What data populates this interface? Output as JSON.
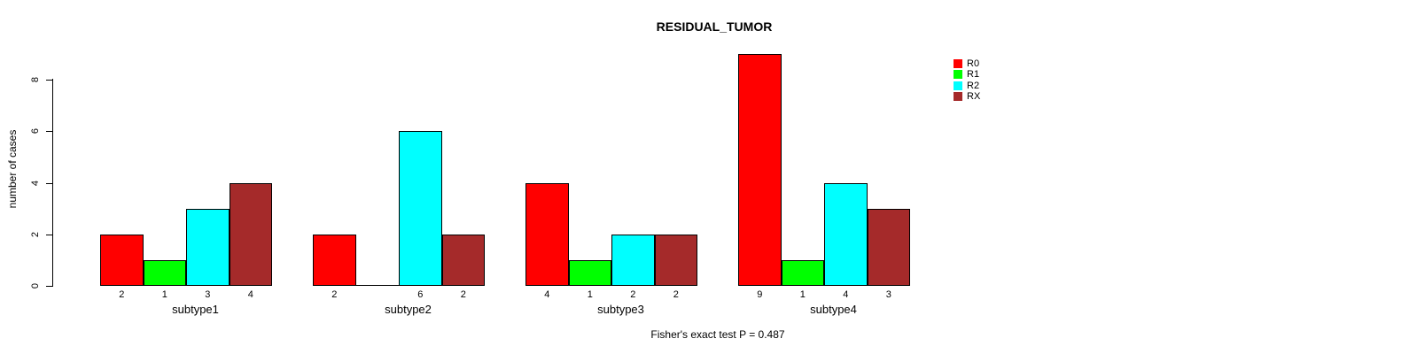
{
  "title": "RESIDUAL_TUMOR",
  "ylabel": "number of cases",
  "caption": "Fisher's exact test P = 0.487",
  "legend": {
    "position": "top-right",
    "items": [
      {
        "label": "R0",
        "color": "#FF0000"
      },
      {
        "label": "R1",
        "color": "#00FF00"
      },
      {
        "label": "R2",
        "color": "#00FFFF"
      },
      {
        "label": "RX",
        "color": "#A52A2A"
      }
    ]
  },
  "chart_data": {
    "type": "bar",
    "grouped": true,
    "title": "RESIDUAL_TUMOR",
    "xlabel": "",
    "ylabel": "number of cases",
    "categories": [
      "subtype1",
      "subtype2",
      "subtype3",
      "subtype4"
    ],
    "series": [
      {
        "name": "R0",
        "color": "#FF0000",
        "values": [
          2,
          2,
          4,
          9
        ]
      },
      {
        "name": "R1",
        "color": "#00FF00",
        "values": [
          1,
          0,
          1,
          1
        ]
      },
      {
        "name": "R2",
        "color": "#00FFFF",
        "values": [
          3,
          6,
          2,
          4
        ]
      },
      {
        "name": "RX",
        "color": "#A52A2A",
        "values": [
          4,
          2,
          2,
          3
        ]
      }
    ],
    "bar_value_labels": [
      [
        "2",
        "1",
        "3",
        "4"
      ],
      [
        "2",
        "",
        "6",
        "2"
      ],
      [
        "4",
        "1",
        "2",
        "2"
      ],
      [
        "9",
        "1",
        "4",
        "3"
      ]
    ],
    "yticks": [
      0,
      2,
      4,
      6,
      8
    ],
    "ytick_labels": [
      "0",
      "2",
      "4",
      "6",
      "8"
    ],
    "ylim": [
      0,
      9
    ],
    "grid": false,
    "bar_border_color": "#000000",
    "annotation": "Fisher's exact test P = 0.487"
  }
}
